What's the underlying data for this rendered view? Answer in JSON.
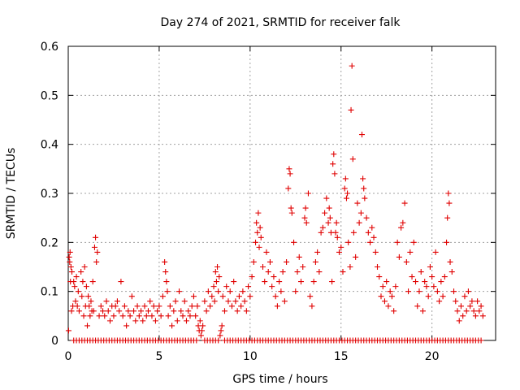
{
  "chart_data": {
    "type": "scatter",
    "title": "Day 274 of 2021, SRMTID for receiver falk",
    "xlabel": "GPS time / hours",
    "ylabel": "SRMTID / TECUs",
    "xlim": [
      0,
      23.5
    ],
    "ylim": [
      0,
      0.6
    ],
    "xticks": [
      0,
      5,
      10,
      15,
      20
    ],
    "yticks": [
      0,
      0.1,
      0.2,
      0.3,
      0.4,
      0.5,
      0.6
    ],
    "xtick_labels": [
      "0",
      "5",
      "10",
      "15",
      "20"
    ],
    "ytick_labels": [
      "0",
      "0.1",
      "0.2",
      "0.3",
      "0.4",
      "0.5",
      "0.6"
    ],
    "grid": true,
    "marker": "+",
    "color": "#e00000",
    "series": [
      {
        "name": "SRMTID",
        "points": [
          [
            0.02,
            0.02
          ],
          [
            0.05,
            0.17
          ],
          [
            0.08,
            0.16
          ],
          [
            0.1,
            0.18
          ],
          [
            0.12,
            0.12
          ],
          [
            0.15,
            0.15
          ],
          [
            0.18,
            0.06
          ],
          [
            0.2,
            0.14
          ],
          [
            0.25,
            0.07
          ],
          [
            0.3,
            0.12
          ],
          [
            0.35,
            0.11
          ],
          [
            0.4,
            0.08
          ],
          [
            0.45,
            0.13
          ],
          [
            0.5,
            0.07
          ],
          [
            0.55,
            0.1
          ],
          [
            0.6,
            0.06
          ],
          [
            0.7,
            0.14
          ],
          [
            0.75,
            0.09
          ],
          [
            0.8,
            0.12
          ],
          [
            0.85,
            0.05
          ],
          [
            0.9,
            0.15
          ],
          [
            0.95,
            0.07
          ],
          [
            1.0,
            0.11
          ],
          [
            1.05,
            0.03
          ],
          [
            1.1,
            0.09
          ],
          [
            1.15,
            0.07
          ],
          [
            1.2,
            0.05
          ],
          [
            1.25,
            0.08
          ],
          [
            1.3,
            0.06
          ],
          [
            1.35,
            0.12
          ],
          [
            1.4,
            0.06
          ],
          [
            1.45,
            0.19
          ],
          [
            1.5,
            0.21
          ],
          [
            1.55,
            0.16
          ],
          [
            1.6,
            0.18
          ],
          [
            1.7,
            0.05
          ],
          [
            1.8,
            0.07
          ],
          [
            1.9,
            0.06
          ],
          [
            2.0,
            0.05
          ],
          [
            2.1,
            0.08
          ],
          [
            2.2,
            0.06
          ],
          [
            2.3,
            0.04
          ],
          [
            2.4,
            0.07
          ],
          [
            2.5,
            0.05
          ],
          [
            2.6,
            0.07
          ],
          [
            2.7,
            0.08
          ],
          [
            2.8,
            0.06
          ],
          [
            2.9,
            0.12
          ],
          [
            3.0,
            0.05
          ],
          [
            3.1,
            0.07
          ],
          [
            3.2,
            0.03
          ],
          [
            3.3,
            0.06
          ],
          [
            3.4,
            0.05
          ],
          [
            3.5,
            0.09
          ],
          [
            3.6,
            0.06
          ],
          [
            3.7,
            0.04
          ],
          [
            3.8,
            0.07
          ],
          [
            3.9,
            0.05
          ],
          [
            4.0,
            0.06
          ],
          [
            4.1,
            0.04
          ],
          [
            4.2,
            0.07
          ],
          [
            4.3,
            0.05
          ],
          [
            4.4,
            0.06
          ],
          [
            4.5,
            0.08
          ],
          [
            4.6,
            0.05
          ],
          [
            4.7,
            0.07
          ],
          [
            4.8,
            0.04
          ],
          [
            4.9,
            0.06
          ],
          [
            5.0,
            0.07
          ],
          [
            5.1,
            0.05
          ],
          [
            5.2,
            0.09
          ],
          [
            5.3,
            0.16
          ],
          [
            5.35,
            0.14
          ],
          [
            5.4,
            0.12
          ],
          [
            5.45,
            0.1
          ],
          [
            5.5,
            0.05
          ],
          [
            5.6,
            0.07
          ],
          [
            5.7,
            0.03
          ],
          [
            5.8,
            0.06
          ],
          [
            5.9,
            0.08
          ],
          [
            6.0,
            0.04
          ],
          [
            6.1,
            0.1
          ],
          [
            6.2,
            0.06
          ],
          [
            6.3,
            0.05
          ],
          [
            6.4,
            0.08
          ],
          [
            6.5,
            0.04
          ],
          [
            6.6,
            0.06
          ],
          [
            6.7,
            0.05
          ],
          [
            6.8,
            0.07
          ],
          [
            6.9,
            0.09
          ],
          [
            7.0,
            0.05
          ],
          [
            7.1,
            0.07
          ],
          [
            7.15,
            0.03
          ],
          [
            7.2,
            0.02
          ],
          [
            7.25,
            0.04
          ],
          [
            7.3,
            0.01
          ],
          [
            7.35,
            0.02
          ],
          [
            7.4,
            0.03
          ],
          [
            7.5,
            0.08
          ],
          [
            7.6,
            0.06
          ],
          [
            7.7,
            0.1
          ],
          [
            7.8,
            0.07
          ],
          [
            7.9,
            0.09
          ],
          [
            8.0,
            0.11
          ],
          [
            8.05,
            0.08
          ],
          [
            8.1,
            0.14
          ],
          [
            8.15,
            0.12
          ],
          [
            8.2,
            0.15
          ],
          [
            8.25,
            0.1
          ],
          [
            8.3,
            0.13
          ],
          [
            8.35,
            0.01
          ],
          [
            8.4,
            0.02
          ],
          [
            8.45,
            0.03
          ],
          [
            8.5,
            0.09
          ],
          [
            8.6,
            0.06
          ],
          [
            8.7,
            0.11
          ],
          [
            8.8,
            0.08
          ],
          [
            8.9,
            0.1
          ],
          [
            9.0,
            0.07
          ],
          [
            9.1,
            0.12
          ],
          [
            9.2,
            0.08
          ],
          [
            9.3,
            0.06
          ],
          [
            9.4,
            0.09
          ],
          [
            9.5,
            0.07
          ],
          [
            9.6,
            0.1
          ],
          [
            9.7,
            0.08
          ],
          [
            9.8,
            0.06
          ],
          [
            9.9,
            0.11
          ],
          [
            10.0,
            0.09
          ],
          [
            10.1,
            0.13
          ],
          [
            10.2,
            0.16
          ],
          [
            10.3,
            0.2
          ],
          [
            10.35,
            0.24
          ],
          [
            10.4,
            0.22
          ],
          [
            10.45,
            0.26
          ],
          [
            10.5,
            0.19
          ],
          [
            10.55,
            0.23
          ],
          [
            10.6,
            0.21
          ],
          [
            10.7,
            0.15
          ],
          [
            10.8,
            0.12
          ],
          [
            10.9,
            0.18
          ],
          [
            11.0,
            0.14
          ],
          [
            11.1,
            0.16
          ],
          [
            11.2,
            0.11
          ],
          [
            11.3,
            0.13
          ],
          [
            11.4,
            0.09
          ],
          [
            11.5,
            0.07
          ],
          [
            11.6,
            0.12
          ],
          [
            11.7,
            0.1
          ],
          [
            11.8,
            0.14
          ],
          [
            11.9,
            0.08
          ],
          [
            12.0,
            0.16
          ],
          [
            12.1,
            0.31
          ],
          [
            12.15,
            0.35
          ],
          [
            12.2,
            0.34
          ],
          [
            12.25,
            0.27
          ],
          [
            12.3,
            0.26
          ],
          [
            12.4,
            0.2
          ],
          [
            12.5,
            0.1
          ],
          [
            12.6,
            0.14
          ],
          [
            12.7,
            0.17
          ],
          [
            12.8,
            0.12
          ],
          [
            12.9,
            0.15
          ],
          [
            13.0,
            0.25
          ],
          [
            13.05,
            0.27
          ],
          [
            13.1,
            0.24
          ],
          [
            13.2,
            0.3
          ],
          [
            13.3,
            0.09
          ],
          [
            13.4,
            0.07
          ],
          [
            13.5,
            0.12
          ],
          [
            13.6,
            0.16
          ],
          [
            13.7,
            0.18
          ],
          [
            13.8,
            0.14
          ],
          [
            13.9,
            0.22
          ],
          [
            14.0,
            0.23
          ],
          [
            14.1,
            0.26
          ],
          [
            14.2,
            0.29
          ],
          [
            14.3,
            0.24
          ],
          [
            14.35,
            0.27
          ],
          [
            14.4,
            0.25
          ],
          [
            14.45,
            0.22
          ],
          [
            14.5,
            0.12
          ],
          [
            14.55,
            0.36
          ],
          [
            14.6,
            0.38
          ],
          [
            14.65,
            0.34
          ],
          [
            14.7,
            0.22
          ],
          [
            14.75,
            0.24
          ],
          [
            14.8,
            0.21
          ],
          [
            14.9,
            0.18
          ],
          [
            15.0,
            0.19
          ],
          [
            15.1,
            0.14
          ],
          [
            15.2,
            0.31
          ],
          [
            15.25,
            0.33
          ],
          [
            15.3,
            0.29
          ],
          [
            15.35,
            0.3
          ],
          [
            15.4,
            0.2
          ],
          [
            15.5,
            0.15
          ],
          [
            15.55,
            0.47
          ],
          [
            15.6,
            0.56
          ],
          [
            15.65,
            0.37
          ],
          [
            15.7,
            0.22
          ],
          [
            15.8,
            0.17
          ],
          [
            15.9,
            0.28
          ],
          [
            16.0,
            0.24
          ],
          [
            16.1,
            0.26
          ],
          [
            16.15,
            0.42
          ],
          [
            16.2,
            0.33
          ],
          [
            16.25,
            0.31
          ],
          [
            16.3,
            0.29
          ],
          [
            16.4,
            0.25
          ],
          [
            16.5,
            0.22
          ],
          [
            16.6,
            0.2
          ],
          [
            16.7,
            0.23
          ],
          [
            16.8,
            0.21
          ],
          [
            16.9,
            0.18
          ],
          [
            17.0,
            0.15
          ],
          [
            17.1,
            0.13
          ],
          [
            17.2,
            0.09
          ],
          [
            17.3,
            0.11
          ],
          [
            17.4,
            0.08
          ],
          [
            17.5,
            0.12
          ],
          [
            17.6,
            0.07
          ],
          [
            17.7,
            0.1
          ],
          [
            17.8,
            0.09
          ],
          [
            17.9,
            0.06
          ],
          [
            18.0,
            0.11
          ],
          [
            18.1,
            0.2
          ],
          [
            18.2,
            0.17
          ],
          [
            18.3,
            0.23
          ],
          [
            18.4,
            0.24
          ],
          [
            18.5,
            0.28
          ],
          [
            18.6,
            0.16
          ],
          [
            18.7,
            0.1
          ],
          [
            18.8,
            0.18
          ],
          [
            18.9,
            0.13
          ],
          [
            19.0,
            0.2
          ],
          [
            19.1,
            0.12
          ],
          [
            19.2,
            0.07
          ],
          [
            19.3,
            0.1
          ],
          [
            19.4,
            0.14
          ],
          [
            19.5,
            0.06
          ],
          [
            19.6,
            0.12
          ],
          [
            19.7,
            0.11
          ],
          [
            19.8,
            0.09
          ],
          [
            19.9,
            0.15
          ],
          [
            20.0,
            0.13
          ],
          [
            20.1,
            0.11
          ],
          [
            20.2,
            0.18
          ],
          [
            20.3,
            0.1
          ],
          [
            20.4,
            0.08
          ],
          [
            20.5,
            0.12
          ],
          [
            20.6,
            0.09
          ],
          [
            20.7,
            0.13
          ],
          [
            20.8,
            0.2
          ],
          [
            20.85,
            0.25
          ],
          [
            20.9,
            0.3
          ],
          [
            20.95,
            0.28
          ],
          [
            21.0,
            0.16
          ],
          [
            21.1,
            0.14
          ],
          [
            21.2,
            0.1
          ],
          [
            21.3,
            0.08
          ],
          [
            21.4,
            0.06
          ],
          [
            21.5,
            0.04
          ],
          [
            21.6,
            0.07
          ],
          [
            21.7,
            0.05
          ],
          [
            21.8,
            0.09
          ],
          [
            21.9,
            0.06
          ],
          [
            22.0,
            0.1
          ],
          [
            22.1,
            0.07
          ],
          [
            22.2,
            0.08
          ],
          [
            22.3,
            0.06
          ],
          [
            22.4,
            0.05
          ],
          [
            22.5,
            0.08
          ],
          [
            22.6,
            0.06
          ],
          [
            22.7,
            0.07
          ],
          [
            22.8,
            0.05
          ]
        ],
        "zero_points_x": [
          0.3,
          0.45,
          0.6,
          0.75,
          0.9,
          1.05,
          1.2,
          1.35,
          1.5,
          1.65,
          1.8,
          1.95,
          2.1,
          2.25,
          2.4,
          2.55,
          2.7,
          2.85,
          3.0,
          3.15,
          3.3,
          3.45,
          3.6,
          3.75,
          3.9,
          4.05,
          4.2,
          4.35,
          4.5,
          4.65,
          4.8,
          4.95,
          5.1,
          5.25,
          5.4,
          5.55,
          5.7,
          5.85,
          6.0,
          6.15,
          6.3,
          6.45,
          6.6,
          6.75,
          6.9,
          7.05,
          7.5,
          7.65,
          7.8,
          7.95,
          8.1,
          8.25,
          8.6,
          8.75,
          8.9,
          9.05,
          9.2,
          9.35,
          9.5,
          9.65,
          9.8,
          9.95,
          10.1,
          10.25,
          10.4,
          10.55,
          10.7,
          10.85,
          11.0,
          11.15,
          11.3,
          11.45,
          11.6,
          11.75,
          11.9,
          12.05,
          12.2,
          12.35,
          12.5,
          12.65,
          12.8,
          12.95,
          13.1,
          13.25,
          13.4,
          13.55,
          13.7,
          13.85,
          14.0,
          14.15,
          14.3,
          14.45,
          14.6,
          14.75,
          14.9,
          15.05,
          15.2,
          15.35,
          15.5,
          15.65,
          15.8,
          15.95,
          16.1,
          16.25,
          16.4,
          16.55,
          16.7,
          16.85,
          17.0,
          17.15,
          17.3,
          17.45,
          17.6,
          17.75,
          17.9,
          18.05,
          18.2,
          18.35,
          18.5,
          18.65,
          18.8,
          18.95,
          19.1,
          19.25,
          19.4,
          19.55,
          19.7,
          19.85,
          20.0,
          20.15,
          20.3,
          20.45,
          20.6,
          20.75,
          20.9,
          21.05,
          21.2,
          21.35,
          21.5,
          21.65,
          21.8,
          21.95,
          22.1,
          22.25,
          22.4,
          22.55,
          22.7
        ]
      }
    ]
  }
}
